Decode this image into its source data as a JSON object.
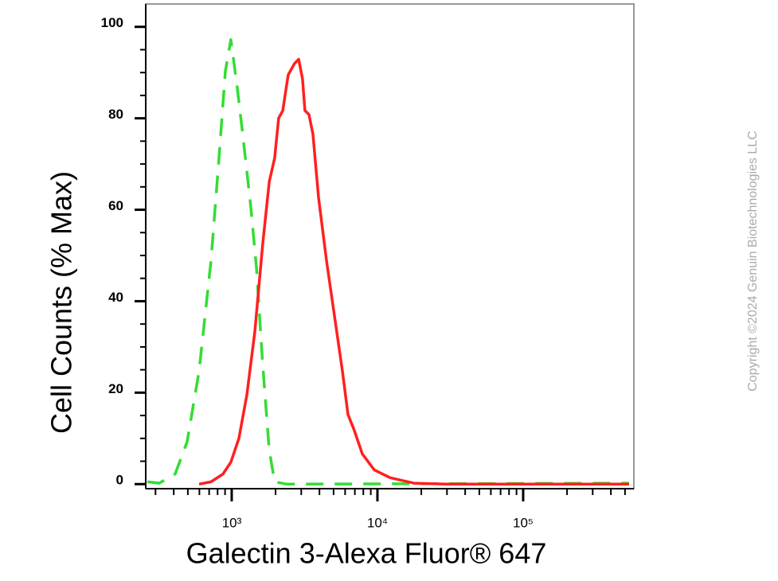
{
  "chart_data": {
    "type": "line",
    "x_label": "Galectin 3-Alexa Fluor® 647",
    "y_label": "Cell Counts (% Max)",
    "watermark": "Copyright ©2024 Genuin Biotechnologies LLC",
    "xscale": "log",
    "xlim": [
      257,
      575000
    ],
    "ylim": [
      -1,
      105
    ],
    "xticks": [
      {
        "value": 1000,
        "label": "10³"
      },
      {
        "value": 10000,
        "label": "10⁴"
      },
      {
        "value": 100000,
        "label": "10⁵"
      }
    ],
    "xminor": [
      300,
      400,
      500,
      600,
      700,
      800,
      900,
      2000,
      3000,
      4000,
      5000,
      6000,
      7000,
      8000,
      9000,
      20000,
      30000,
      40000,
      50000,
      60000,
      70000,
      80000,
      90000,
      200000,
      300000,
      400000,
      500000
    ],
    "yticks": [
      0,
      20,
      40,
      60,
      80,
      100
    ],
    "yminor": [
      5,
      10,
      15,
      25,
      30,
      35,
      45,
      50,
      55,
      65,
      70,
      75,
      85,
      90,
      95
    ],
    "series": [
      {
        "color": "#ff2020",
        "dash": false,
        "x": [
          597,
          721,
          871,
          987,
          1120,
          1270,
          1440,
          1630,
          1810,
          1970,
          2100,
          2240,
          2440,
          2700,
          2880,
          3060,
          3180,
          3390,
          3610,
          3940,
          4470,
          5070,
          5750,
          6280,
          6940,
          7880,
          9510,
          12200,
          17800,
          29500,
          533000
        ],
        "values": [
          0,
          0.5,
          2.2,
          4.8,
          10,
          19.5,
          33.3,
          52.3,
          66.1,
          71.3,
          80,
          81.7,
          89.5,
          92,
          92.9,
          88.6,
          81.7,
          80.8,
          76.5,
          62.7,
          48.9,
          36.8,
          24.7,
          15.2,
          11.7,
          6.6,
          3.1,
          1.4,
          0.2,
          0,
          0
        ]
      },
      {
        "color": "#33dd33",
        "dash": true,
        "x": [
          264,
          318,
          409,
          494,
          597,
          721,
          818,
          904,
          987,
          1090,
          1190,
          1350,
          1480,
          1630,
          1810,
          1970,
          2380,
          533000
        ],
        "values": [
          0.5,
          0.2,
          2.2,
          9.2,
          24.7,
          48.9,
          71.3,
          90.3,
          97.2,
          86.9,
          76.5,
          60.9,
          47.2,
          26.4,
          7.4,
          0.5,
          0,
          0.2
        ]
      }
    ]
  }
}
